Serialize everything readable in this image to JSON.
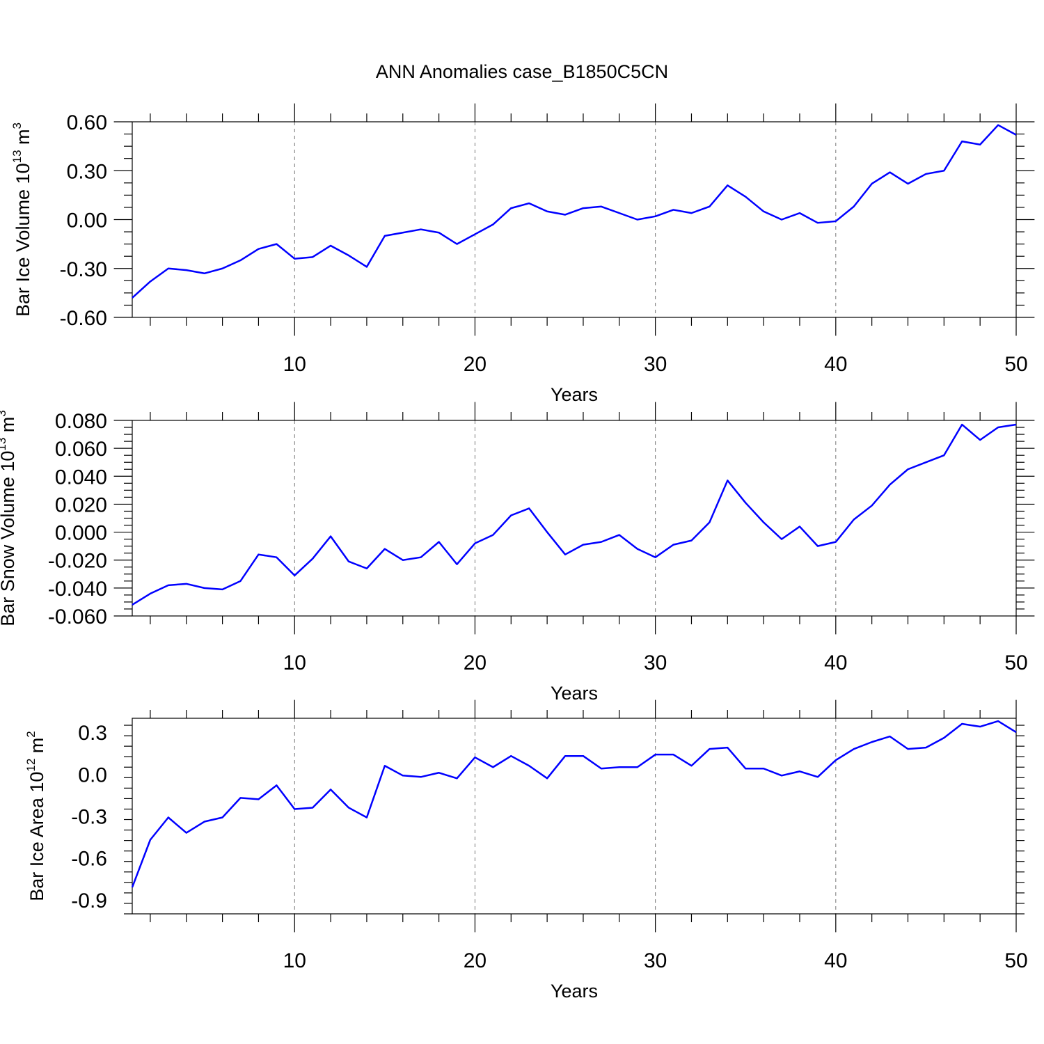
{
  "title": "ANN Anomalies case_B1850C5CN",
  "colors": {
    "series": "#0000ff",
    "axis": "#000000",
    "grid": "#777777"
  },
  "chart_data": [
    {
      "type": "line",
      "xlabel": "Years",
      "ylabel": {
        "text": "Bar Ice Volume 10",
        "exp": "13",
        "unit": " m",
        "unit_exp": "3"
      },
      "xlim": [
        1,
        50
      ],
      "ylim": [
        -0.6,
        0.6
      ],
      "xticks": [
        10,
        20,
        30,
        40,
        50
      ],
      "yticks": [
        -0.6,
        -0.3,
        0.0,
        0.3,
        0.6
      ],
      "ytick_labels": [
        "-0.60",
        "-0.30",
        "0.00",
        "0.30",
        "0.60"
      ],
      "grid": "vertical dashed at major x ticks",
      "series": [
        {
          "x": [
            1,
            2,
            3,
            4,
            5,
            6,
            7,
            8,
            9,
            10,
            11,
            12,
            13,
            14,
            15,
            16,
            17,
            18,
            19,
            20,
            21,
            22,
            23,
            24,
            25,
            26,
            27,
            28,
            29,
            30,
            31,
            32,
            33,
            34,
            35,
            36,
            37,
            38,
            39,
            40,
            41,
            42,
            43,
            44,
            45,
            46,
            47,
            48,
            49,
            50
          ],
          "values": [
            -0.48,
            -0.38,
            -0.3,
            -0.31,
            -0.33,
            -0.3,
            -0.25,
            -0.18,
            -0.15,
            -0.24,
            -0.23,
            -0.16,
            -0.22,
            -0.29,
            -0.1,
            -0.08,
            -0.06,
            -0.08,
            -0.15,
            -0.09,
            -0.03,
            0.07,
            0.1,
            0.05,
            0.03,
            0.07,
            0.08,
            0.04,
            0.0,
            0.02,
            0.06,
            0.04,
            0.08,
            0.21,
            0.14,
            0.05,
            0.0,
            0.04,
            -0.02,
            -0.01,
            0.08,
            0.22,
            0.29,
            0.22,
            0.28,
            0.3,
            0.48,
            0.46,
            0.58,
            0.52
          ]
        }
      ]
    },
    {
      "type": "line",
      "xlabel": "Years",
      "ylabel": {
        "text": "Bar Snow Volume 10",
        "exp": "13",
        "unit": " m",
        "unit_exp": "3"
      },
      "xlim": [
        1,
        50
      ],
      "ylim": [
        -0.06,
        0.08
      ],
      "xticks": [
        10,
        20,
        30,
        40,
        50
      ],
      "yticks": [
        -0.06,
        -0.04,
        -0.02,
        0.0,
        0.02,
        0.04,
        0.06,
        0.08
      ],
      "ytick_labels": [
        "-0.060",
        "-0.040",
        "-0.020",
        "0.000",
        "0.020",
        "0.040",
        "0.060",
        "0.080"
      ],
      "grid": "vertical dashed at major x ticks",
      "series": [
        {
          "x": [
            1,
            2,
            3,
            4,
            5,
            6,
            7,
            8,
            9,
            10,
            11,
            12,
            13,
            14,
            15,
            16,
            17,
            18,
            19,
            20,
            21,
            22,
            23,
            24,
            25,
            26,
            27,
            28,
            29,
            30,
            31,
            32,
            33,
            34,
            35,
            36,
            37,
            38,
            39,
            40,
            41,
            42,
            43,
            44,
            45,
            46,
            47,
            48,
            49,
            50
          ],
          "values": [
            -0.052,
            -0.044,
            -0.038,
            -0.037,
            -0.04,
            -0.041,
            -0.035,
            -0.016,
            -0.018,
            -0.031,
            -0.019,
            -0.003,
            -0.021,
            -0.026,
            -0.012,
            -0.02,
            -0.018,
            -0.007,
            -0.023,
            -0.008,
            -0.002,
            0.012,
            0.017,
            0.0,
            -0.016,
            -0.009,
            -0.007,
            -0.002,
            -0.012,
            -0.018,
            -0.009,
            -0.006,
            0.007,
            0.037,
            0.021,
            0.007,
            -0.005,
            0.004,
            -0.01,
            -0.007,
            0.009,
            0.019,
            0.034,
            0.045,
            0.05,
            0.055,
            0.077,
            0.066,
            0.075,
            0.077
          ]
        }
      ]
    },
    {
      "type": "line",
      "xlabel": "Years",
      "ylabel": {
        "text": "Bar Ice Area 10",
        "exp": "12",
        "unit": " m",
        "unit_exp": "2"
      },
      "xlim": [
        1,
        50
      ],
      "ylim": [
        -1.0,
        0.4
      ],
      "xticks": [
        10,
        20,
        30,
        40,
        50
      ],
      "yticks": [
        -0.9,
        -0.6,
        -0.3,
        0.0,
        0.3
      ],
      "ytick_labels": [
        "-0.9",
        "-0.6",
        "-0.3",
        "0.0",
        "0.3"
      ],
      "grid": "vertical dashed at major x ticks",
      "series": [
        {
          "x": [
            1,
            2,
            3,
            4,
            5,
            6,
            7,
            8,
            9,
            10,
            11,
            12,
            13,
            14,
            15,
            16,
            17,
            18,
            19,
            20,
            21,
            22,
            23,
            24,
            25,
            26,
            27,
            28,
            29,
            30,
            31,
            32,
            33,
            34,
            35,
            36,
            37,
            38,
            39,
            40,
            41,
            42,
            43,
            44,
            45,
            46,
            47,
            48,
            49,
            50
          ],
          "values": [
            -0.81,
            -0.47,
            -0.31,
            -0.42,
            -0.34,
            -0.31,
            -0.17,
            -0.18,
            -0.08,
            -0.25,
            -0.24,
            -0.11,
            -0.24,
            -0.31,
            0.06,
            -0.01,
            -0.02,
            0.01,
            -0.03,
            0.12,
            0.05,
            0.13,
            0.06,
            -0.03,
            0.13,
            0.13,
            0.04,
            0.05,
            0.05,
            0.14,
            0.14,
            0.06,
            0.18,
            0.19,
            0.04,
            0.04,
            -0.01,
            0.02,
            -0.02,
            0.1,
            0.18,
            0.23,
            0.27,
            0.18,
            0.19,
            0.26,
            0.36,
            0.34,
            0.38,
            0.3
          ]
        }
      ]
    }
  ]
}
